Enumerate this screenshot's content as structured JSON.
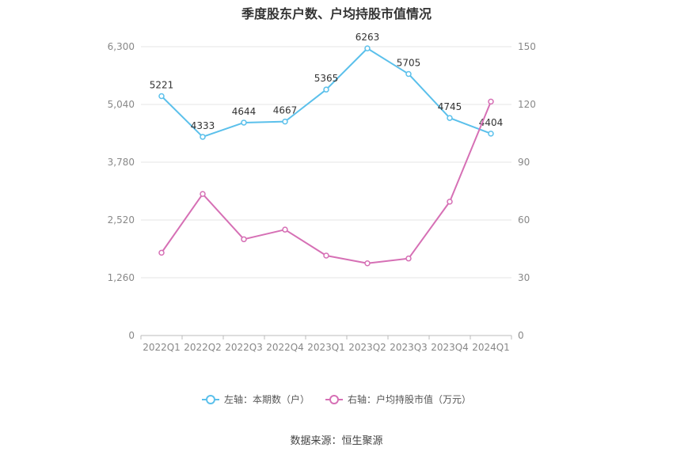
{
  "title": "季度股东户数、户均持股市值情况",
  "source": "数据来源：恒生聚源",
  "legend": [
    {
      "label": "左轴：本期数（户）",
      "color": "#5bc0eb"
    },
    {
      "label": "右轴：户均持股市值（万元）",
      "color": "#d670b5"
    }
  ],
  "chart_data": {
    "type": "line",
    "categories": [
      "2022Q1",
      "2022Q2",
      "2022Q3",
      "2022Q4",
      "2023Q1",
      "2023Q2",
      "2023Q3",
      "2023Q4",
      "2024Q1"
    ],
    "left_axis": {
      "ylim": [
        0,
        6300
      ],
      "ticks": [
        "0",
        "1,260",
        "2,520",
        "3,780",
        "5,040",
        "6,300"
      ]
    },
    "right_axis": {
      "ylim": [
        0,
        150
      ],
      "ticks": [
        "0",
        "30",
        "60",
        "90",
        "120",
        "150"
      ]
    },
    "series": [
      {
        "name": "左轴：本期数（户）",
        "axis": "left",
        "color": "#5bc0eb",
        "values": [
          5221,
          4333,
          4644,
          4667,
          5365,
          6263,
          5705,
          4745,
          4404
        ],
        "labels": [
          "5221",
          "4333",
          "4644",
          "4667",
          "5365",
          "6263",
          "5705",
          "4745",
          "4404"
        ]
      },
      {
        "name": "右轴：户均持股市值（万元）",
        "axis": "right",
        "color": "#d670b5",
        "values": [
          43.0,
          73.5,
          50.0,
          55.0,
          41.5,
          37.5,
          40.0,
          69.5,
          121.5
        ]
      }
    ],
    "grid": true
  }
}
